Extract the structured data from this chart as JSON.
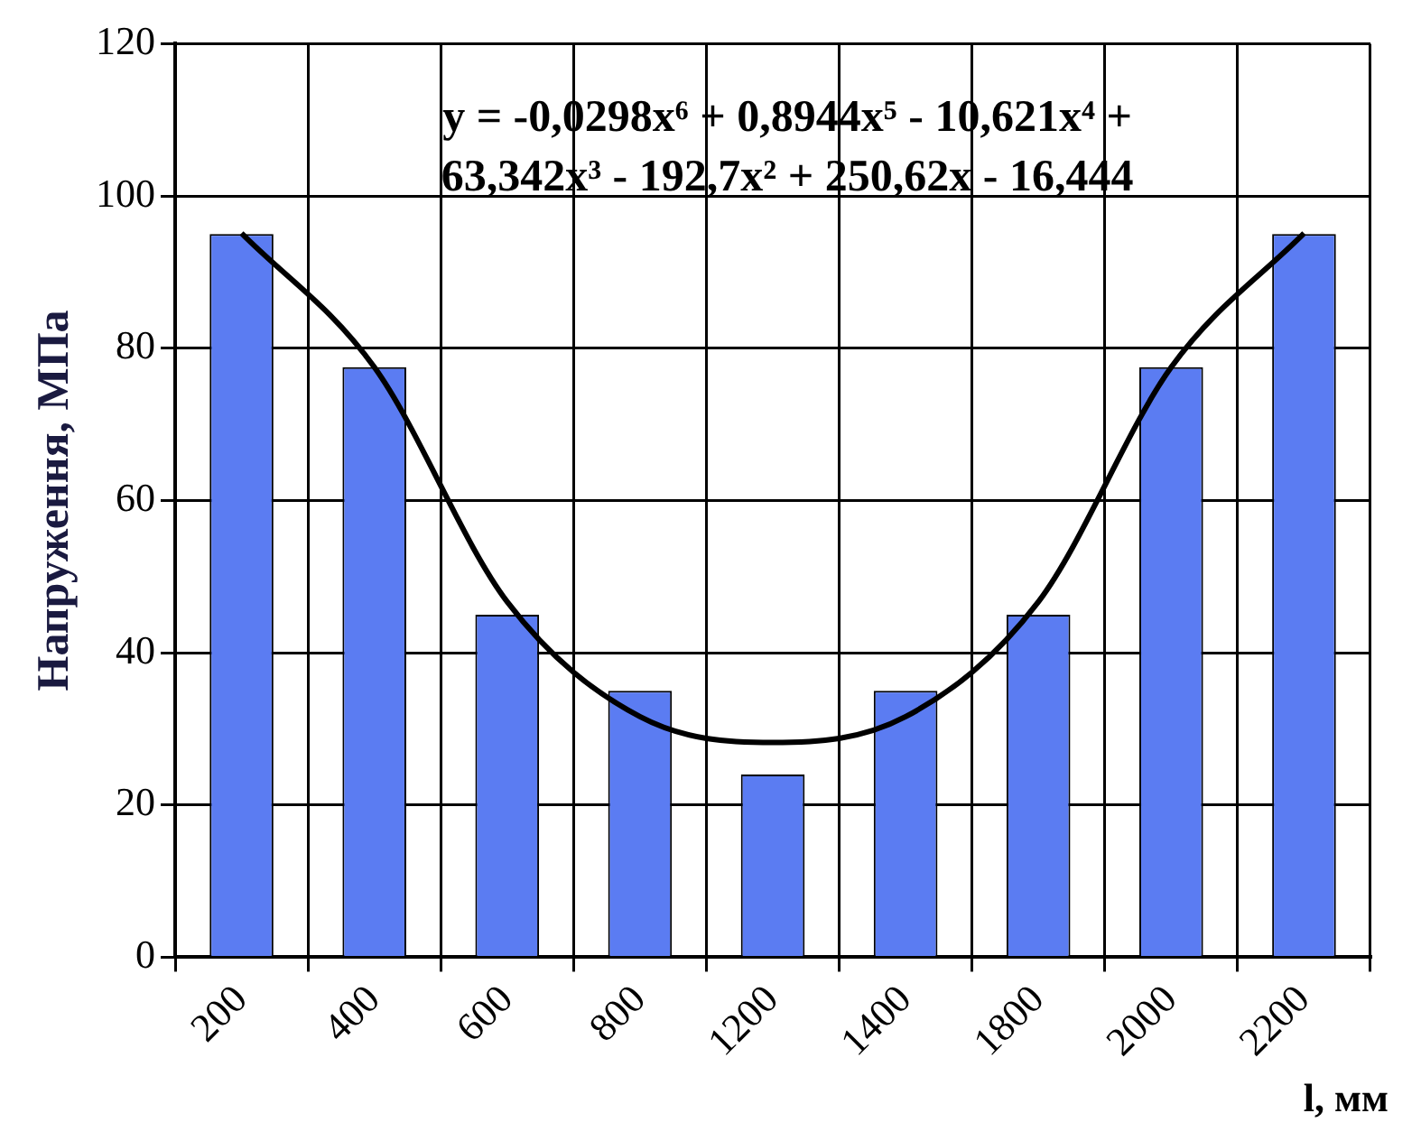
{
  "chart_data": {
    "type": "bar",
    "ylabel": "Напруження, МПа",
    "xlabel": "l, мм",
    "categories": [
      "200",
      "400",
      "600",
      "800",
      "1200",
      "1400",
      "1800",
      "2000",
      "2200"
    ],
    "series": [
      {
        "color": "#5b7cf2",
        "values": [
          95,
          77.5,
          45,
          35,
          24,
          35,
          45,
          77.5,
          95
        ]
      },
      {
        "type": "line",
        "color": "#000000",
        "values": [
          95.1,
          77.5,
          46.7,
          31.6,
          28.2,
          31.6,
          46.7,
          77.5,
          95.1
        ]
      }
    ],
    "annotations": [
      "y = -0,0298x⁶ + 0,8944x⁵ - 10,621x⁴ +",
      "63,342x³ - 192,7x² + 250,62x - 16,444"
    ],
    "ylim": [
      0,
      120
    ],
    "yticks": [
      0,
      20,
      40,
      60,
      80,
      100,
      120
    ],
    "grid": true,
    "legend": false,
    "marker": "none",
    "line_style": "solid"
  }
}
